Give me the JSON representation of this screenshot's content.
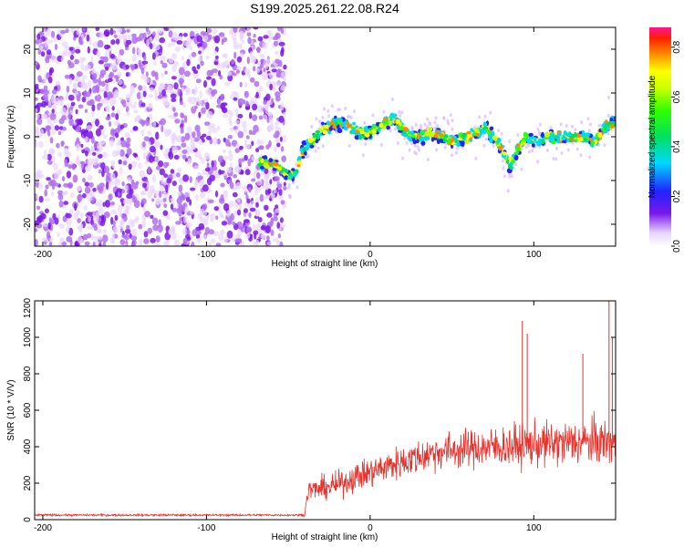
{
  "title": "S199.2025.261.22.08.R24",
  "chart_data": [
    {
      "type": "heatmap",
      "xlabel": "Height of straight line (km)",
      "ylabel": "Frequency (Hz)",
      "xlim": [
        -205,
        150
      ],
      "ylim": [
        -25,
        25
      ],
      "xticks": [
        -200,
        -100,
        0,
        100
      ],
      "yticks": [
        -20,
        -10,
        0,
        10,
        20
      ],
      "colorbar": {
        "label": "Normalized spectral amplitude",
        "range": [
          0,
          0.88
        ],
        "ticks": [
          "0.0",
          "0.2",
          "0.4",
          "0.6",
          "0.8"
        ]
      },
      "noise_region_x": [
        -205,
        -52
      ],
      "trace": {
        "x": [
          -68,
          -60,
          -55,
          -50,
          -45,
          -42,
          -38,
          -33,
          -28,
          -22,
          -15,
          -8,
          0,
          8,
          15,
          22,
          30,
          40,
          50,
          60,
          70,
          78,
          82,
          86,
          90,
          95,
          100,
          110,
          120,
          130,
          138,
          145,
          150
        ],
        "y": [
          -6,
          -6,
          -7,
          -9,
          -8,
          -4,
          -2,
          0,
          2,
          3,
          3,
          1,
          1,
          3,
          4,
          1,
          0,
          1,
          -1,
          0,
          2,
          -1,
          -4,
          -7,
          -3,
          0,
          -1,
          0,
          0,
          0,
          -1,
          3,
          3
        ]
      },
      "grid": false
    },
    {
      "type": "line",
      "xlabel": "Height of straight line (km)",
      "ylabel": "SNR (10 * V/V)",
      "xlim": [
        -205,
        150
      ],
      "ylim": [
        0,
        1200
      ],
      "xticks": [
        -200,
        -100,
        0,
        100
      ],
      "yticks": [
        0,
        200,
        400,
        600,
        800,
        1000,
        1200
      ],
      "color": "#e8322c",
      "envelope": {
        "x": [
          -205,
          -40,
          -38,
          -30,
          -20,
          -10,
          0,
          20,
          40,
          60,
          80,
          100,
          120,
          140,
          150
        ],
        "mean": [
          25,
          25,
          160,
          170,
          190,
          230,
          260,
          320,
          370,
          390,
          400,
          410,
          420,
          430,
          420
        ],
        "spread": [
          8,
          8,
          80,
          90,
          100,
          110,
          120,
          130,
          140,
          150,
          160,
          170,
          175,
          180,
          170
        ]
      },
      "spikes": [
        {
          "x": 93,
          "y": 1090
        },
        {
          "x": 96,
          "y": 1020
        },
        {
          "x": 130,
          "y": 910
        },
        {
          "x": 146,
          "y": 1200
        },
        {
          "x": 148,
          "y": 1000
        },
        {
          "x": 150,
          "y": 940
        }
      ],
      "grid": false
    }
  ]
}
